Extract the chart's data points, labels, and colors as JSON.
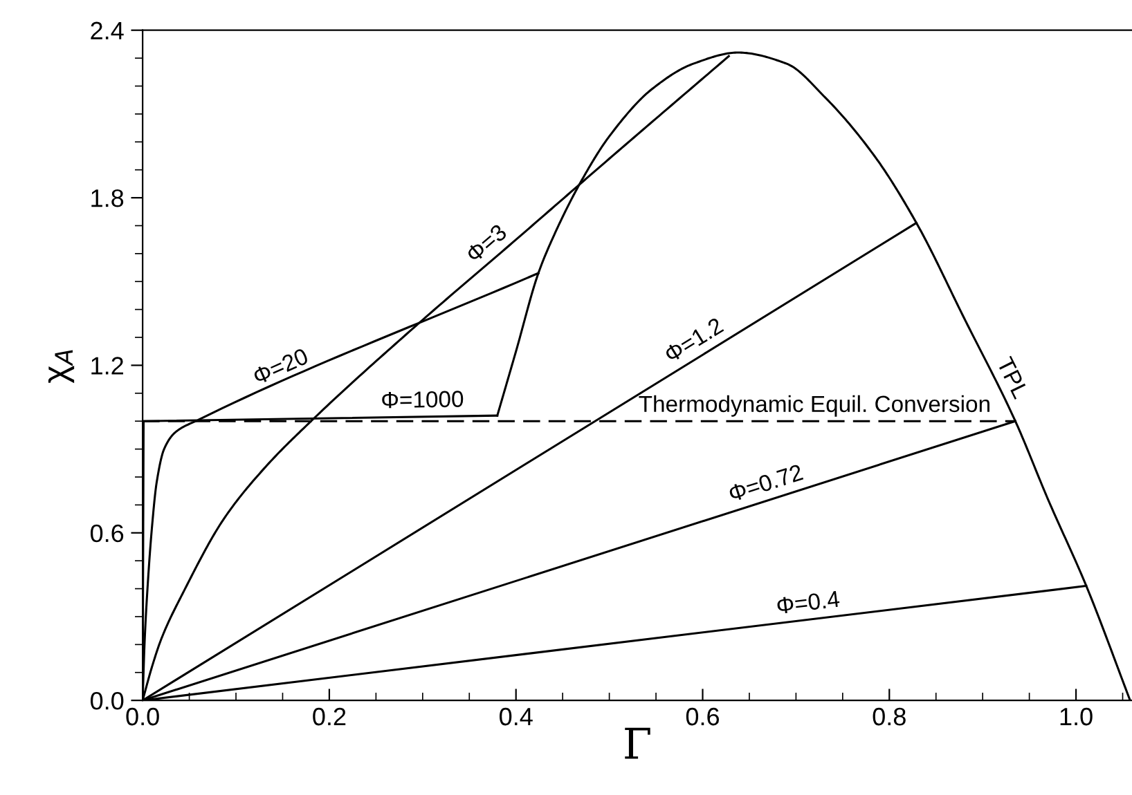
{
  "chart_data": {
    "type": "line",
    "xlabel": "Γ",
    "ylabel": "χ$_{A}$",
    "xlim": [
      0,
      1.06
    ],
    "ylim": [
      0,
      2.4
    ],
    "xticks": [
      {
        "value": 0,
        "label": "0.0"
      },
      {
        "value": 0.05,
        "label": null
      },
      {
        "value": 0.1,
        "label": null
      },
      {
        "value": 0.15,
        "label": null
      },
      0.2,
      {
        "value": 0.25,
        "label": null
      },
      {
        "value": 0.3,
        "label": null
      },
      {
        "value": 0.35,
        "label": null
      },
      0.4,
      {
        "value": 0.45,
        "label": null
      },
      {
        "value": 0.5,
        "label": null
      },
      {
        "value": 0.55,
        "label": null
      },
      0.6,
      {
        "value": 0.65,
        "label": null
      },
      {
        "value": 0.7,
        "label": null
      },
      {
        "value": 0.75,
        "label": null
      },
      0.8,
      {
        "value": 0.85,
        "label": null
      },
      {
        "value": 0.9,
        "label": null
      },
      {
        "value": 0.95,
        "label": null
      },
      {
        "value": 1.0,
        "label": "1.0"
      },
      {
        "value": 1.05,
        "label": null
      }
    ],
    "yticks": [
      {
        "value": 0,
        "label": "0.0"
      },
      {
        "value": 0.1,
        "label": null
      },
      {
        "value": 0.2,
        "label": null
      },
      {
        "value": 0.3,
        "label": null
      },
      {
        "value": 0.4,
        "label": null
      },
      {
        "value": 0.5,
        "label": null
      },
      0.6,
      {
        "value": 0.7,
        "label": null
      },
      {
        "value": 0.8,
        "label": null
      },
      {
        "value": 0.9,
        "label": null
      },
      {
        "value": 1.0,
        "label": null
      },
      {
        "value": 1.1,
        "label": null
      },
      1.2,
      {
        "value": 1.3,
        "label": null
      },
      {
        "value": 1.4,
        "label": null
      },
      {
        "value": 1.5,
        "label": null
      },
      {
        "value": 1.6,
        "label": null
      },
      {
        "value": 1.7,
        "label": null
      },
      1.8,
      {
        "value": 1.9,
        "label": null
      },
      {
        "value": 2.0,
        "label": null
      },
      {
        "value": 2.1,
        "label": null
      },
      {
        "value": 2.2,
        "label": null
      },
      {
        "value": 2.3,
        "label": null
      },
      2.4
    ],
    "grid": false,
    "legend": false,
    "marker": "none",
    "line_style": "solid",
    "series": [
      {
        "color": "#000000",
        "x": [
          0.38,
          0.4,
          0.424,
          0.44,
          0.47,
          0.5,
          0.546,
          0.59,
          0.638,
          0.69,
          0.731,
          0.784,
          0.829,
          0.88,
          0.935,
          0.97,
          1.011,
          1.058
        ],
        "values": [
          1.02,
          1.25,
          1.53,
          1.66,
          1.86,
          2.02,
          2.19,
          2.28,
          2.32,
          2.28,
          2.16,
          1.95,
          1.71,
          1.37,
          1.0,
          0.72,
          0.41,
          0.0
        ]
      },
      {
        "color": "#000000",
        "x": [
          0,
          0.001,
          0.38
        ],
        "values": [
          0,
          1.0,
          1.02
        ]
      },
      {
        "color": "#000000",
        "x": [
          0,
          0.002,
          0.005,
          0.01,
          0.015,
          0.023,
          0.035,
          0.06,
          0.424
        ],
        "values": [
          0,
          0.2,
          0.39,
          0.62,
          0.78,
          0.9,
          0.96,
          1.005,
          1.53
        ]
      },
      {
        "color": "#000000",
        "x": [
          0,
          0.01,
          0.02,
          0.044,
          0.087,
          0.13,
          0.182,
          0.293,
          0.4,
          0.5,
          0.628
        ],
        "values": [
          0,
          0.12,
          0.22,
          0.39,
          0.65,
          0.83,
          1.005,
          1.342,
          1.65,
          1.94,
          2.307
        ]
      },
      {
        "color": "#000000",
        "x": [
          0,
          0.829
        ],
        "values": [
          0,
          1.71
        ]
      },
      {
        "color": "#000000",
        "x": [
          0,
          0.935
        ],
        "values": [
          0,
          1.0
        ]
      },
      {
        "color": "#000000",
        "x": [
          0,
          1.011
        ],
        "values": [
          0,
          0.41
        ]
      },
      {
        "color": "#000000",
        "x": [
          0,
          0.935
        ],
        "values": [
          1.0,
          1.0
        ],
        "line_style": "dashed"
      }
    ],
    "annotations": [
      {
        "text": "Φ=3",
        "x": 0.38,
        "y": 1.59
      },
      {
        "text": "Φ=20",
        "x": 0.155,
        "y": 1.14
      },
      {
        "text": "Φ=1000",
        "x": 0.3,
        "y": 1.016
      },
      {
        "text": "Φ=1.2",
        "x": 0.6,
        "y": 1.238
      },
      {
        "text": "Φ=0.72",
        "x": 0.673,
        "y": 0.72
      },
      {
        "text": "Φ=0.4",
        "x": 0.715,
        "y": 0.29
      },
      {
        "text": "TPL",
        "x": 0.916,
        "y": 1.128
      },
      {
        "text": "Thermodynamic Equil. Conversion",
        "x": 0.72,
        "y": 1.0
      }
    ]
  }
}
